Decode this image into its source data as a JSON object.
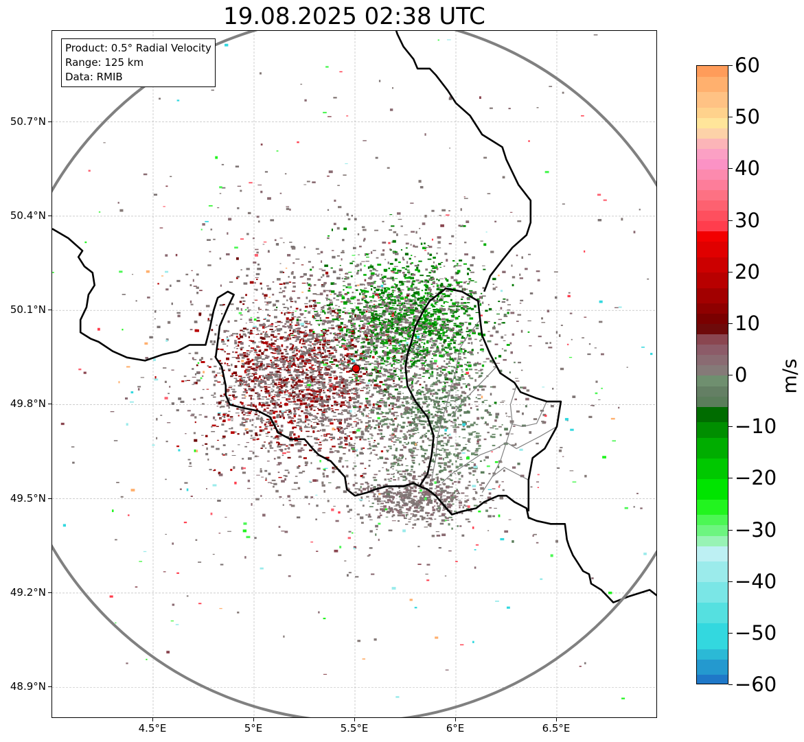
{
  "title": "19.08.2025 02:38 UTC",
  "info_box": [
    "Product: 0.5° Radial Velocity",
    "Range: 125 km",
    "Data: RMIB"
  ],
  "map": {
    "lon_range": [
      4.0,
      7.0
    ],
    "lat_range": [
      48.8,
      50.99
    ],
    "radar_site": {
      "lon": 5.505,
      "lat": 49.915
    },
    "range_km": 125,
    "y_ticks": [
      {
        "lat": 50.7,
        "label": "50.7°N"
      },
      {
        "lat": 50.4,
        "label": "50.4°N"
      },
      {
        "lat": 50.1,
        "label": "50.1°N"
      },
      {
        "lat": 49.8,
        "label": "49.8°N"
      },
      {
        "lat": 49.5,
        "label": "49.5°N"
      },
      {
        "lat": 49.2,
        "label": "49.2°N"
      },
      {
        "lat": 48.9,
        "label": "48.9°N"
      }
    ],
    "x_ticks": [
      {
        "lon": 4.5,
        "label": "4.5°E"
      },
      {
        "lon": 5.0,
        "label": "5°E"
      },
      {
        "lon": 5.5,
        "label": "5.5°E"
      },
      {
        "lon": 6.0,
        "label": "6°E"
      },
      {
        "lon": 6.5,
        "label": "6.5°E"
      }
    ],
    "colors": {
      "grid": "#b0b0b0",
      "range_ring": "#808080",
      "border": "#000000",
      "admin": "#808080",
      "radar_site": "#e00000"
    },
    "borders": [
      [
        [
          4.0,
          50.36
        ],
        [
          4.08,
          50.33
        ],
        [
          4.15,
          50.29
        ],
        [
          4.13,
          50.27
        ],
        [
          4.16,
          50.24
        ],
        [
          4.2,
          50.22
        ],
        [
          4.21,
          50.18
        ],
        [
          4.18,
          50.15
        ],
        [
          4.17,
          50.11
        ],
        [
          4.14,
          50.07
        ],
        [
          4.14,
          50.03
        ],
        [
          4.19,
          50.01
        ],
        [
          4.23,
          50.0
        ],
        [
          4.3,
          49.97
        ],
        [
          4.37,
          49.95
        ],
        [
          4.46,
          49.94
        ],
        [
          4.55,
          49.96
        ],
        [
          4.62,
          49.97
        ],
        [
          4.68,
          49.99
        ],
        [
          4.76,
          49.99
        ],
        [
          4.78,
          50.04
        ],
        [
          4.8,
          50.1
        ],
        [
          4.82,
          50.14
        ],
        [
          4.87,
          50.16
        ],
        [
          4.9,
          50.15
        ],
        [
          4.87,
          50.11
        ],
        [
          4.85,
          50.08
        ],
        [
          4.83,
          50.05
        ],
        [
          4.82,
          50.0
        ],
        [
          4.81,
          49.95
        ],
        [
          4.84,
          49.92
        ],
        [
          4.86,
          49.86
        ],
        [
          4.86,
          49.83
        ],
        [
          4.88,
          49.8
        ],
        [
          4.94,
          49.79
        ],
        [
          5.02,
          49.78
        ],
        [
          5.08,
          49.76
        ],
        [
          5.12,
          49.71
        ],
        [
          5.18,
          49.69
        ],
        [
          5.25,
          49.69
        ],
        [
          5.29,
          49.66
        ],
        [
          5.32,
          49.64
        ],
        [
          5.38,
          49.62
        ],
        [
          5.45,
          49.57
        ],
        [
          5.46,
          49.53
        ],
        [
          5.5,
          49.51
        ],
        [
          5.56,
          49.52
        ],
        [
          5.6,
          49.53
        ],
        [
          5.66,
          49.54
        ],
        [
          5.74,
          49.54
        ],
        [
          5.79,
          49.55
        ],
        [
          5.82,
          49.54
        ],
        [
          5.86,
          49.53
        ],
        [
          5.9,
          49.51
        ],
        [
          5.98,
          49.45
        ],
        [
          6.03,
          49.46
        ],
        [
          6.1,
          49.47
        ],
        [
          6.14,
          49.49
        ],
        [
          6.21,
          49.51
        ],
        [
          6.25,
          49.51
        ],
        [
          6.29,
          49.49
        ],
        [
          6.35,
          49.47
        ],
        [
          6.36,
          49.44
        ],
        [
          6.4,
          49.43
        ],
        [
          6.47,
          49.42
        ],
        [
          6.54,
          49.42
        ],
        [
          6.55,
          49.37
        ],
        [
          6.56,
          49.35
        ],
        [
          6.58,
          49.32
        ],
        [
          6.6,
          49.3
        ],
        [
          6.63,
          49.27
        ],
        [
          6.66,
          49.26
        ],
        [
          6.67,
          49.23
        ],
        [
          6.72,
          49.21
        ],
        [
          6.78,
          49.17
        ],
        [
          6.86,
          49.19
        ],
        [
          6.91,
          49.2
        ],
        [
          6.96,
          49.21
        ],
        [
          7.0,
          49.19
        ]
      ],
      [
        [
          5.75,
          49.92
        ],
        [
          5.76,
          49.96
        ],
        [
          5.78,
          50.0
        ],
        [
          5.8,
          50.05
        ],
        [
          5.84,
          50.1
        ],
        [
          5.87,
          50.13
        ],
        [
          5.95,
          50.17
        ],
        [
          6.03,
          50.16
        ],
        [
          6.11,
          50.13
        ],
        [
          6.12,
          50.07
        ],
        [
          6.13,
          50.02
        ],
        [
          6.17,
          49.96
        ],
        [
          6.22,
          49.9
        ],
        [
          6.29,
          49.87
        ],
        [
          6.32,
          49.84
        ],
        [
          6.4,
          49.82
        ],
        [
          6.45,
          49.81
        ],
        [
          6.52,
          49.81
        ],
        [
          6.5,
          49.73
        ],
        [
          6.44,
          49.66
        ],
        [
          6.38,
          49.63
        ],
        [
          6.36,
          49.56
        ],
        [
          6.36,
          49.5
        ],
        [
          6.36,
          49.46
        ]
      ],
      [
        [
          5.82,
          49.54
        ],
        [
          5.86,
          49.58
        ],
        [
          5.88,
          49.64
        ],
        [
          5.89,
          49.7
        ],
        [
          5.86,
          49.76
        ],
        [
          5.8,
          49.81
        ],
        [
          5.76,
          49.86
        ],
        [
          5.75,
          49.92
        ]
      ],
      [
        [
          6.14,
          50.16
        ],
        [
          6.17,
          50.21
        ],
        [
          6.23,
          50.26
        ],
        [
          6.28,
          50.3
        ],
        [
          6.35,
          50.34
        ],
        [
          6.37,
          50.38
        ],
        [
          6.37,
          50.45
        ],
        [
          6.31,
          50.5
        ],
        [
          6.25,
          50.58
        ],
        [
          6.23,
          50.62
        ],
        [
          6.18,
          50.64
        ],
        [
          6.13,
          50.66
        ],
        [
          6.07,
          50.72
        ],
        [
          6.0,
          50.76
        ],
        [
          5.96,
          50.8
        ],
        [
          5.9,
          50.85
        ],
        [
          5.87,
          50.87
        ],
        [
          5.81,
          50.87
        ],
        [
          5.79,
          50.9
        ],
        [
          5.74,
          50.94
        ],
        [
          5.71,
          50.98
        ],
        [
          5.7,
          51.0
        ]
      ]
    ],
    "admin_lines": [
      [
        [
          6.12,
          50.07
        ],
        [
          6.06,
          50.02
        ],
        [
          6.02,
          49.98
        ],
        [
          6.0,
          49.91
        ],
        [
          5.97,
          49.84
        ],
        [
          5.95,
          49.79
        ],
        [
          5.93,
          49.75
        ],
        [
          5.91,
          49.7
        ],
        [
          5.9,
          49.63
        ],
        [
          5.88,
          49.56
        ]
      ],
      [
        [
          6.2,
          49.92
        ],
        [
          6.14,
          49.88
        ],
        [
          6.08,
          49.84
        ],
        [
          6.02,
          49.8
        ],
        [
          5.98,
          49.76
        ]
      ],
      [
        [
          6.3,
          49.86
        ],
        [
          6.27,
          49.8
        ],
        [
          6.28,
          49.74
        ],
        [
          6.25,
          49.68
        ],
        [
          6.22,
          49.62
        ],
        [
          6.18,
          49.57
        ],
        [
          6.13,
          49.52
        ]
      ],
      [
        [
          6.45,
          49.81
        ],
        [
          6.4,
          49.74
        ],
        [
          6.33,
          49.73
        ],
        [
          6.27,
          49.74
        ]
      ],
      [
        [
          6.5,
          49.73
        ],
        [
          6.42,
          49.7
        ],
        [
          6.36,
          49.68
        ],
        [
          6.3,
          49.66
        ],
        [
          6.25,
          49.68
        ]
      ],
      [
        [
          6.25,
          49.68
        ],
        [
          6.2,
          49.66
        ],
        [
          6.12,
          49.64
        ],
        [
          6.05,
          49.61
        ],
        [
          5.98,
          49.58
        ],
        [
          5.93,
          49.55
        ]
      ],
      [
        [
          6.36,
          49.56
        ],
        [
          6.3,
          49.58
        ],
        [
          6.24,
          49.6
        ],
        [
          6.18,
          49.57
        ]
      ]
    ]
  },
  "colorbar": {
    "label": "m/s",
    "range": [
      -60,
      60
    ],
    "ticks": [
      60,
      50,
      40,
      30,
      20,
      10,
      0,
      -10,
      -20,
      -30,
      -40,
      -50,
      -60
    ],
    "tick_labels": [
      "60",
      "50",
      "40",
      "30",
      "20",
      "10",
      "0",
      "−10",
      "−20",
      "−30",
      "−40",
      "−50",
      "−60"
    ],
    "stops": [
      {
        "from": -60,
        "to": -58,
        "color": "#1f78c8"
      },
      {
        "from": -58,
        "to": -55,
        "color": "#2499cf"
      },
      {
        "from": -55,
        "to": -53,
        "color": "#2bb9d6"
      },
      {
        "from": -53,
        "to": -48,
        "color": "#33d8df"
      },
      {
        "from": -48,
        "to": -44,
        "color": "#55e0e0"
      },
      {
        "from": -44,
        "to": -40,
        "color": "#7ae6e6"
      },
      {
        "from": -40,
        "to": -36,
        "color": "#9bebeb"
      },
      {
        "from": -36,
        "to": -33,
        "color": "#bdf0f3"
      },
      {
        "from": -33,
        "to": -31,
        "color": "#98f3b5"
      },
      {
        "from": -31,
        "to": -29,
        "color": "#6df57f"
      },
      {
        "from": -29,
        "to": -27,
        "color": "#4cf754"
      },
      {
        "from": -27,
        "to": -24,
        "color": "#22f41f"
      },
      {
        "from": -24,
        "to": -20,
        "color": "#00e400"
      },
      {
        "from": -20,
        "to": -16,
        "color": "#00c800"
      },
      {
        "from": -16,
        "to": -12,
        "color": "#00ad00"
      },
      {
        "from": -12,
        "to": -9,
        "color": "#008e00"
      },
      {
        "from": -9,
        "to": -6,
        "color": "#006c00"
      },
      {
        "from": -6,
        "to": -4,
        "color": "#5a7d5a"
      },
      {
        "from": -4,
        "to": -2,
        "color": "#647f64"
      },
      {
        "from": -2,
        "to": 0,
        "color": "#6f8f6f"
      },
      {
        "from": 0,
        "to": 2,
        "color": "#857a78"
      },
      {
        "from": 2,
        "to": 4,
        "color": "#8a6b72"
      },
      {
        "from": 4,
        "to": 6,
        "color": "#8c5b68"
      },
      {
        "from": 6,
        "to": 8,
        "color": "#8a4650"
      },
      {
        "from": 8,
        "to": 10,
        "color": "#6e0a0a"
      },
      {
        "from": 10,
        "to": 12,
        "color": "#7a0000"
      },
      {
        "from": 12,
        "to": 14,
        "color": "#8e0000"
      },
      {
        "from": 14,
        "to": 17,
        "color": "#a20000"
      },
      {
        "from": 17,
        "to": 20,
        "color": "#b80000"
      },
      {
        "from": 20,
        "to": 23,
        "color": "#cc0000"
      },
      {
        "from": 23,
        "to": 26,
        "color": "#e00000"
      },
      {
        "from": 26,
        "to": 28,
        "color": "#f20000"
      },
      {
        "from": 28,
        "to": 30,
        "color": "#ff3d4d"
      },
      {
        "from": 30,
        "to": 32,
        "color": "#fe4f5e"
      },
      {
        "from": 32,
        "to": 34,
        "color": "#fd6170"
      },
      {
        "from": 34,
        "to": 36,
        "color": "#fd7183"
      },
      {
        "from": 36,
        "to": 38,
        "color": "#fd7d9a"
      },
      {
        "from": 38,
        "to": 40,
        "color": "#fc8aae"
      },
      {
        "from": 40,
        "to": 42,
        "color": "#fb92c5"
      },
      {
        "from": 42,
        "to": 44,
        "color": "#fba0c4"
      },
      {
        "from": 44,
        "to": 46,
        "color": "#fcb5b8"
      },
      {
        "from": 46,
        "to": 48,
        "color": "#fdd2a8"
      },
      {
        "from": 48,
        "to": 50,
        "color": "#ffe59a"
      },
      {
        "from": 50,
        "to": 52,
        "color": "#ffd28c"
      },
      {
        "from": 52,
        "to": 55,
        "color": "#ffc284"
      },
      {
        "from": 55,
        "to": 58,
        "color": "#ffb06e"
      },
      {
        "from": 58,
        "to": 60,
        "color": "#ff9c5a"
      }
    ]
  }
}
